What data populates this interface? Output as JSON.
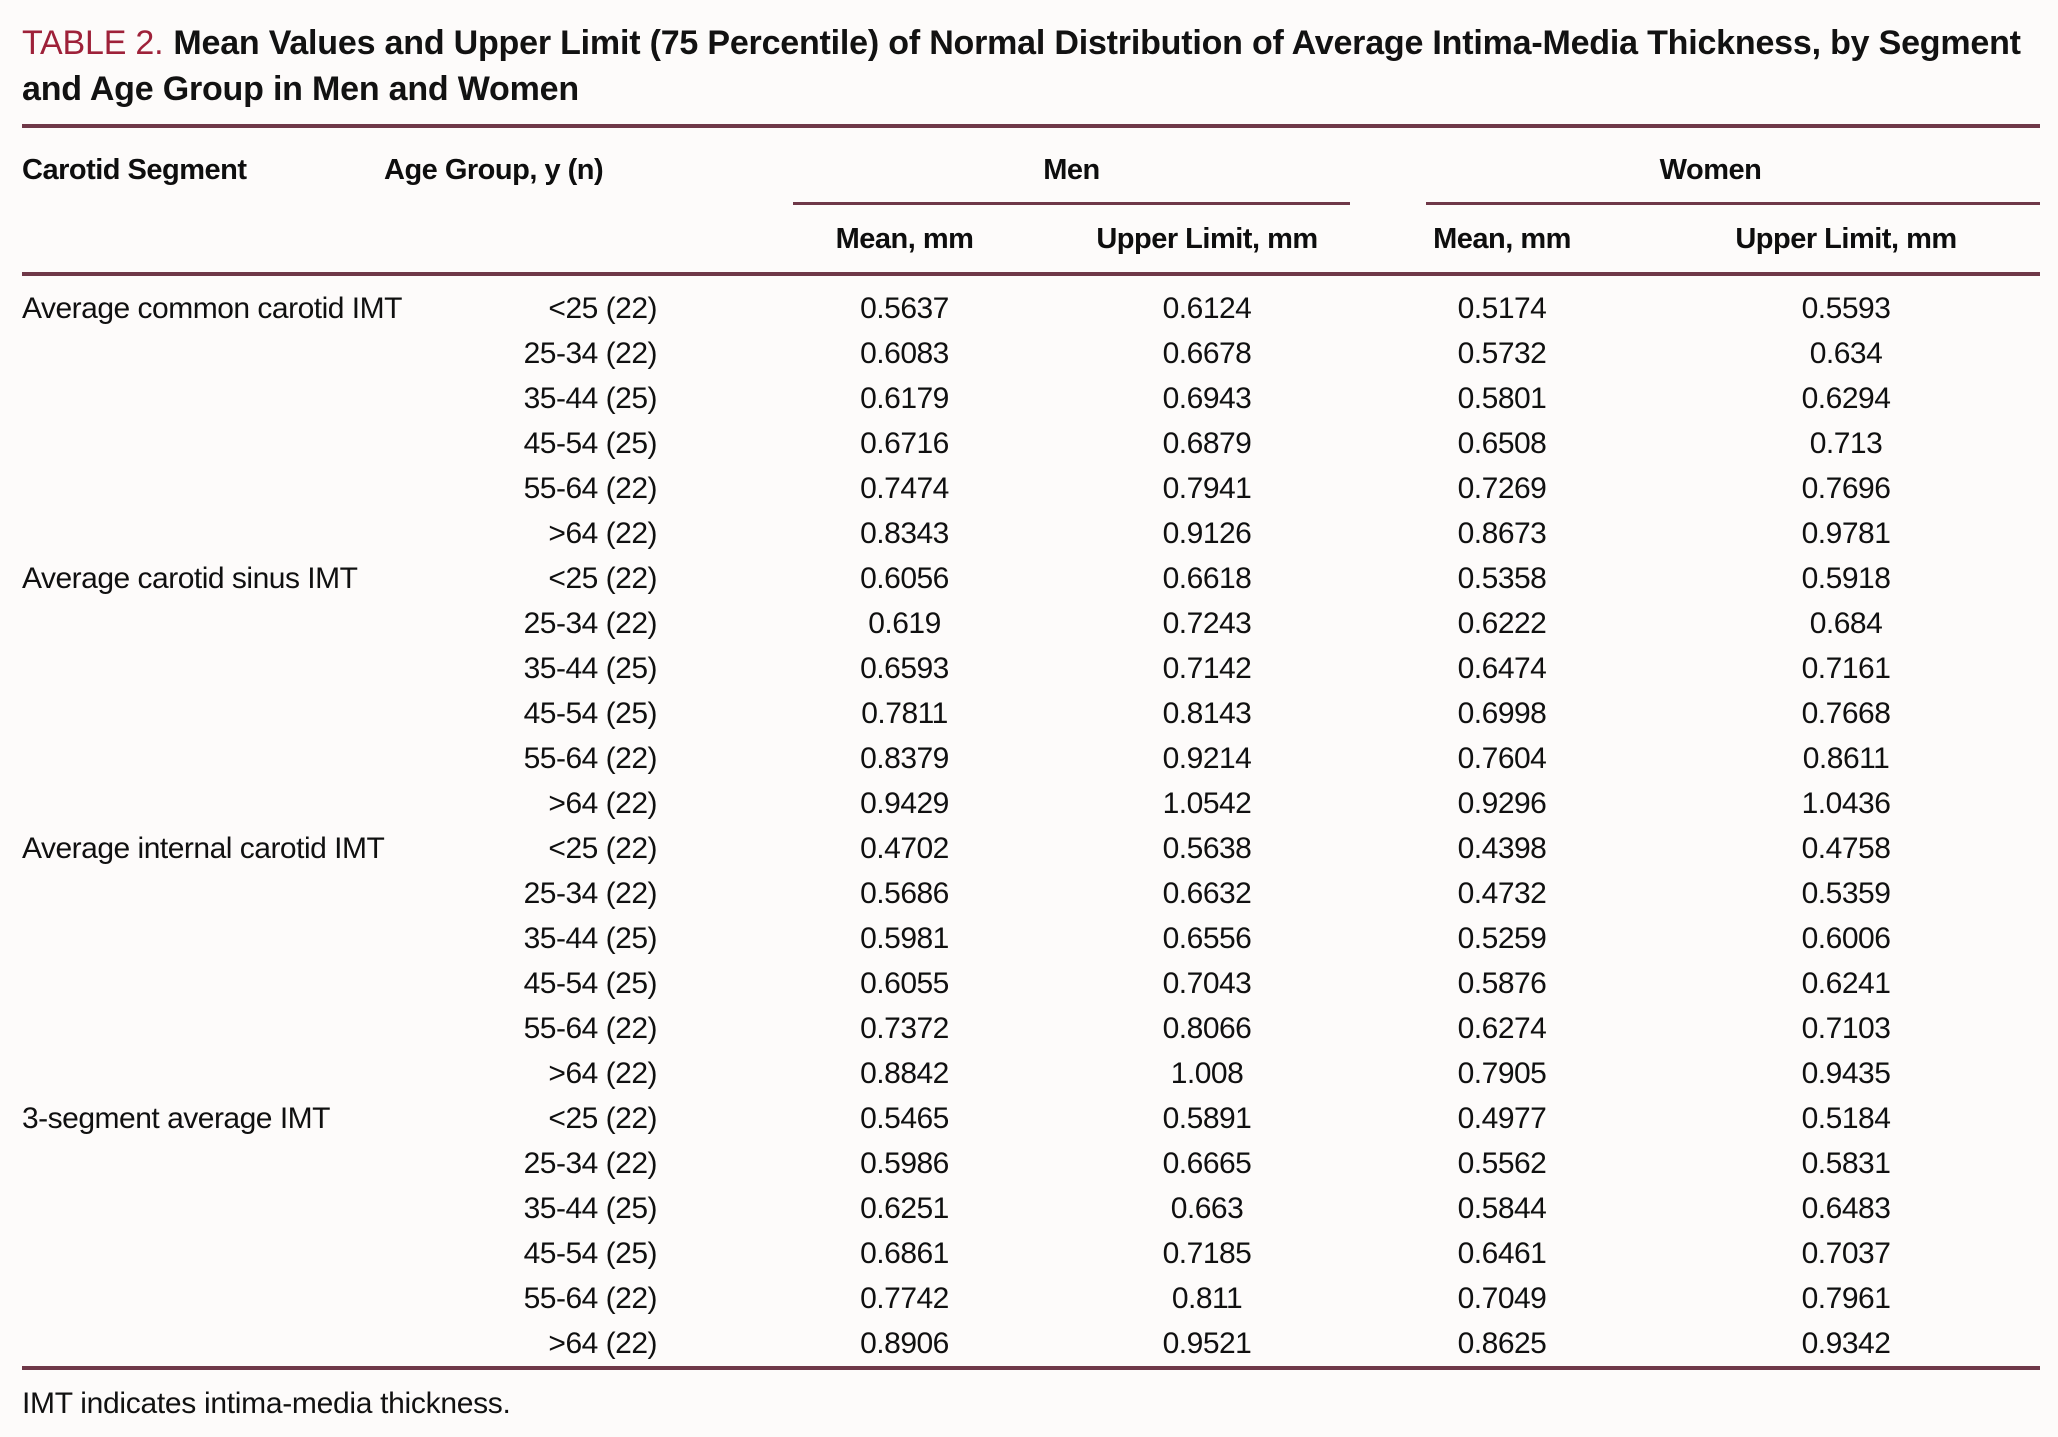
{
  "title": {
    "label": "TABLE 2.",
    "caption": "Mean Values and Upper Limit (75 Percentile) of Normal Distribution of Average Intima-Media Thickness, by Segment and Age Group in Men and Women"
  },
  "columns": {
    "segment": "Carotid Segment",
    "age": "Age Group, y (n)",
    "groups": [
      {
        "label": "Men",
        "sub": [
          "Mean, mm",
          "Upper Limit, mm"
        ]
      },
      {
        "label": "Women",
        "sub": [
          "Mean, mm",
          "Upper Limit, mm"
        ]
      }
    ]
  },
  "segments": [
    {
      "name": "Average common carotid IMT",
      "rows": [
        {
          "age": "<25 (22)",
          "men_mean": "0.5637",
          "men_upper": "0.6124",
          "women_mean": "0.5174",
          "women_upper": "0.5593"
        },
        {
          "age": "25-34 (22)",
          "men_mean": "0.6083",
          "men_upper": "0.6678",
          "women_mean": "0.5732",
          "women_upper": "0.634"
        },
        {
          "age": "35-44 (25)",
          "men_mean": "0.6179",
          "men_upper": "0.6943",
          "women_mean": "0.5801",
          "women_upper": "0.6294"
        },
        {
          "age": "45-54 (25)",
          "men_mean": "0.6716",
          "men_upper": "0.6879",
          "women_mean": "0.6508",
          "women_upper": "0.713"
        },
        {
          "age": "55-64 (22)",
          "men_mean": "0.7474",
          "men_upper": "0.7941",
          "women_mean": "0.7269",
          "women_upper": "0.7696"
        },
        {
          "age": ">64 (22)",
          "men_mean": "0.8343",
          "men_upper": "0.9126",
          "women_mean": "0.8673",
          "women_upper": "0.9781"
        }
      ]
    },
    {
      "name": "Average carotid sinus IMT",
      "rows": [
        {
          "age": "<25 (22)",
          "men_mean": "0.6056",
          "men_upper": "0.6618",
          "women_mean": "0.5358",
          "women_upper": "0.5918"
        },
        {
          "age": "25-34 (22)",
          "men_mean": "0.619",
          "men_upper": "0.7243",
          "women_mean": "0.6222",
          "women_upper": "0.684"
        },
        {
          "age": "35-44 (25)",
          "men_mean": "0.6593",
          "men_upper": "0.7142",
          "women_mean": "0.6474",
          "women_upper": "0.7161"
        },
        {
          "age": "45-54 (25)",
          "men_mean": "0.7811",
          "men_upper": "0.8143",
          "women_mean": "0.6998",
          "women_upper": "0.7668"
        },
        {
          "age": "55-64 (22)",
          "men_mean": "0.8379",
          "men_upper": "0.9214",
          "women_mean": "0.7604",
          "women_upper": "0.8611"
        },
        {
          "age": ">64 (22)",
          "men_mean": "0.9429",
          "men_upper": "1.0542",
          "women_mean": "0.9296",
          "women_upper": "1.0436"
        }
      ]
    },
    {
      "name": "Average internal carotid IMT",
      "rows": [
        {
          "age": "<25 (22)",
          "men_mean": "0.4702",
          "men_upper": "0.5638",
          "women_mean": "0.4398",
          "women_upper": "0.4758"
        },
        {
          "age": "25-34 (22)",
          "men_mean": "0.5686",
          "men_upper": "0.6632",
          "women_mean": "0.4732",
          "women_upper": "0.5359"
        },
        {
          "age": "35-44 (25)",
          "men_mean": "0.5981",
          "men_upper": "0.6556",
          "women_mean": "0.5259",
          "women_upper": "0.6006"
        },
        {
          "age": "45-54 (25)",
          "men_mean": "0.6055",
          "men_upper": "0.7043",
          "women_mean": "0.5876",
          "women_upper": "0.6241"
        },
        {
          "age": "55-64 (22)",
          "men_mean": "0.7372",
          "men_upper": "0.8066",
          "women_mean": "0.6274",
          "women_upper": "0.7103"
        },
        {
          "age": ">64 (22)",
          "men_mean": "0.8842",
          "men_upper": "1.008",
          "women_mean": "0.7905",
          "women_upper": "0.9435"
        }
      ]
    },
    {
      "name": "3-segment average IMT",
      "rows": [
        {
          "age": "<25 (22)",
          "men_mean": "0.5465",
          "men_upper": "0.5891",
          "women_mean": "0.4977",
          "women_upper": "0.5184"
        },
        {
          "age": "25-34 (22)",
          "men_mean": "0.5986",
          "men_upper": "0.6665",
          "women_mean": "0.5562",
          "women_upper": "0.5831"
        },
        {
          "age": "35-44 (25)",
          "men_mean": "0.6251",
          "men_upper": "0.663",
          "women_mean": "0.5844",
          "women_upper": "0.6483"
        },
        {
          "age": "45-54 (25)",
          "men_mean": "0.6861",
          "men_upper": "0.7185",
          "women_mean": "0.6461",
          "women_upper": "0.7037"
        },
        {
          "age": "55-64 (22)",
          "men_mean": "0.7742",
          "men_upper": "0.811",
          "women_mean": "0.7049",
          "women_upper": "0.7961"
        },
        {
          "age": ">64 (22)",
          "men_mean": "0.8906",
          "men_upper": "0.9521",
          "women_mean": "0.8625",
          "women_upper": "0.9342"
        }
      ]
    }
  ],
  "footnote": "IMT indicates intima-media thickness.",
  "colors": {
    "accent_red": "#9e2139",
    "rule_maroon": "#6f3848",
    "text": "#101010",
    "background": "#fdfbfa"
  }
}
